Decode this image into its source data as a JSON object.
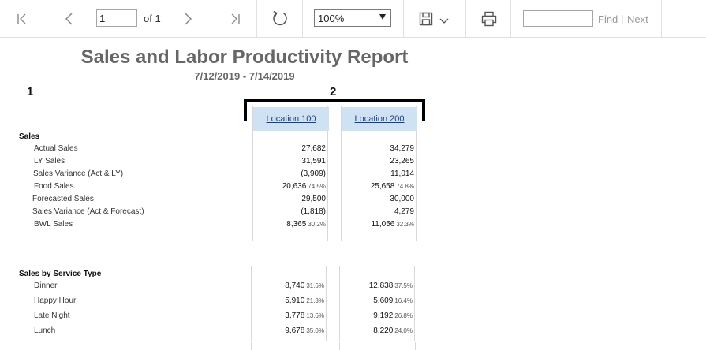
{
  "toolbar": {
    "page_current": "1",
    "page_of": "of 1",
    "zoom": "100%",
    "find_placeholder": "",
    "find_label": "Find",
    "find_separator": "|",
    "next_label": "Next"
  },
  "report": {
    "title": "Sales and Labor Productivity Report",
    "dates": "7/12/2019 - 7/14/2019",
    "marker_1": "1",
    "marker_2": "2",
    "columns": [
      "Location 100",
      "Location 200"
    ]
  },
  "sections": [
    {
      "label": "Sales",
      "rows": [
        {
          "label": "Actual Sales",
          "v1": "27,682",
          "p1": "",
          "v2": "34,279",
          "p2": ""
        },
        {
          "label": "LY Sales",
          "v1": "31,591",
          "p1": "",
          "v2": "23,265",
          "p2": ""
        },
        {
          "label": "Sales Variance (Act & LY)",
          "v1": "(3,909)",
          "p1": "",
          "v2": "11,014",
          "p2": ""
        },
        {
          "label": "Food Sales",
          "v1": "20,636",
          "p1": "74.5%",
          "v2": "25,658",
          "p2": "74.8%"
        },
        {
          "label": "Forecasted Sales",
          "v1": "29,500",
          "p1": "",
          "v2": "30,000",
          "p2": ""
        },
        {
          "label": "Sales Variance (Act & Forecast)",
          "v1": "(1,818)",
          "p1": "",
          "v2": "4,279",
          "p2": ""
        },
        {
          "label": "BWL Sales",
          "v1": "8,365",
          "p1": "30.2%",
          "v2": "11,056",
          "p2": "32.3%"
        }
      ]
    },
    {
      "label": "Sales by Service Type",
      "rows": [
        {
          "label": "Dinner",
          "v1": "8,740",
          "p1": "31.6%",
          "v2": "12,838",
          "p2": "37.5%"
        },
        {
          "label": "Happy Hour",
          "v1": "5,910",
          "p1": "21.3%",
          "v2": "5,609",
          "p2": "16.4%"
        },
        {
          "label": "Late Night",
          "v1": "3,778",
          "p1": "13.6%",
          "v2": "9,192",
          "p2": "26.8%"
        },
        {
          "label": "Lunch",
          "v1": "9,678",
          "p1": "35.0%",
          "v2": "8,220",
          "p2": "24.0%"
        }
      ]
    }
  ]
}
